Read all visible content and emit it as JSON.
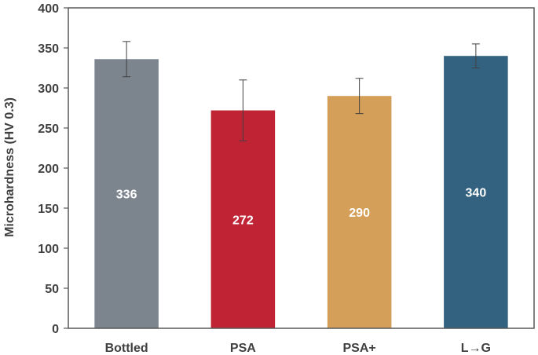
{
  "chart_data": {
    "type": "bar",
    "title": "",
    "xlabel": "",
    "ylabel": "Microhardness (HV 0.3)",
    "ylim": [
      0,
      400
    ],
    "yticks": [
      0,
      50,
      100,
      150,
      200,
      250,
      300,
      350,
      400
    ],
    "grid": false,
    "categories": [
      "Bottled",
      "PSA",
      "PSA+",
      "L→G"
    ],
    "values": [
      336,
      272,
      290,
      340
    ],
    "error": [
      22,
      38,
      22,
      15
    ],
    "data_labels": [
      "336",
      "272",
      "290",
      "340"
    ],
    "colors": [
      "#7c858e",
      "#c02434",
      "#d49f58",
      "#336180"
    ]
  }
}
